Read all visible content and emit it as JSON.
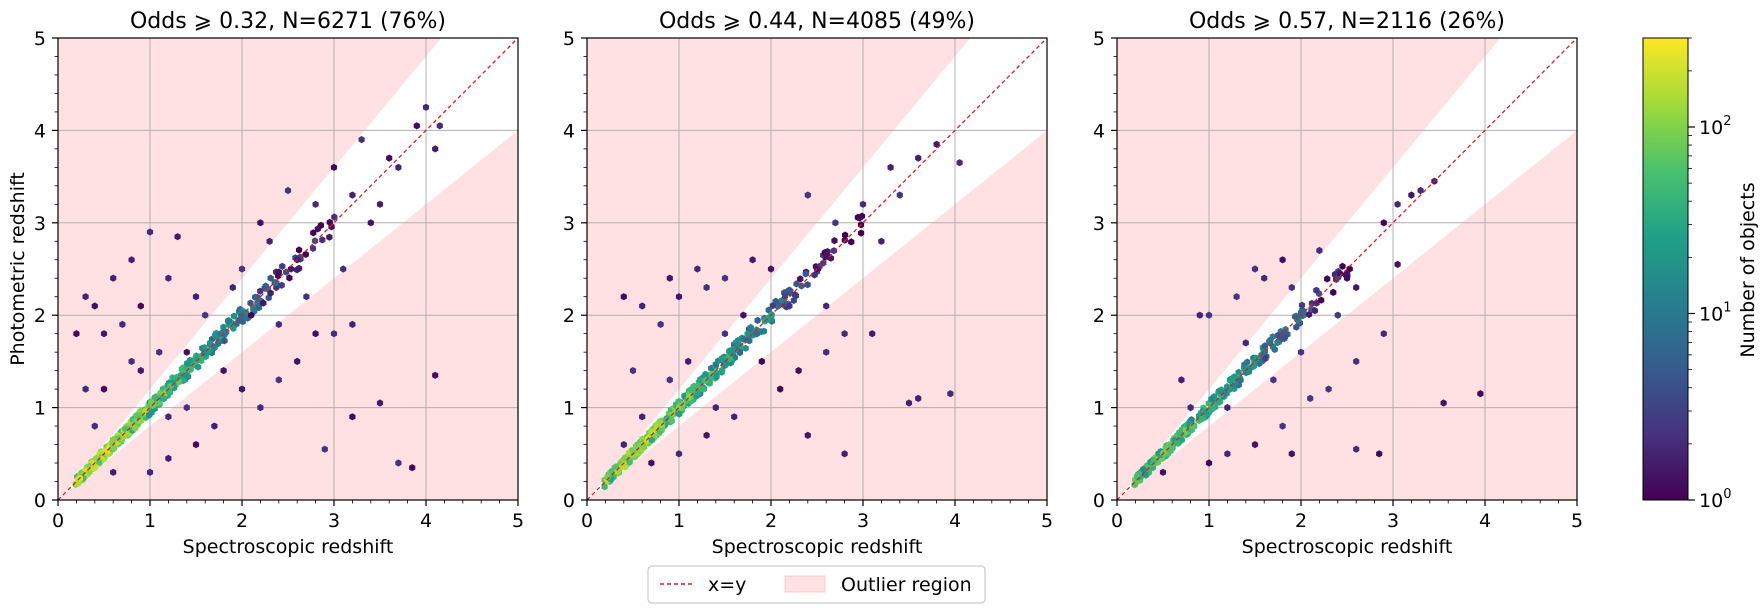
{
  "figure": {
    "legend": {
      "items": [
        {
          "label": "x=y",
          "color": "#e31a1c",
          "style": "dashed-line"
        },
        {
          "label": "Outlier region",
          "color": "#ffe0e3",
          "style": "patch"
        }
      ],
      "placement": "bottom-center"
    },
    "colorbar": {
      "label": "Number of objects",
      "scale": "log",
      "range": [
        1,
        300
      ],
      "ticks": [
        {
          "value": 1,
          "base": "10",
          "exp": "0"
        },
        {
          "value": 10,
          "base": "10",
          "exp": "1"
        },
        {
          "value": 100,
          "base": "10",
          "exp": "2"
        }
      ],
      "colormap": [
        "#440154",
        "#46327e",
        "#365c8d",
        "#277f8e",
        "#1fa187",
        "#4ac16d",
        "#a0da39",
        "#fde725"
      ]
    }
  },
  "chart_data": [
    {
      "type": "scatter",
      "title": "Odds ⩾ 0.32, N=6271 (76%)",
      "xlabel": "Spectroscopic redshift",
      "ylabel": "Photometric redshift",
      "xlim": [
        0,
        5
      ],
      "ylim": [
        0,
        5
      ],
      "xticks": [
        "0",
        "1",
        "2",
        "3",
        "4",
        "5"
      ],
      "yticks": [
        "0",
        "1",
        "2",
        "3",
        "4",
        "5"
      ],
      "grid": true,
      "outlier_region_slope_band": [
        0.8,
        1.2
      ],
      "dense_core": [
        [
          0.3,
          0.3,
          200
        ],
        [
          0.5,
          0.5,
          260
        ],
        [
          0.7,
          0.7,
          220
        ],
        [
          0.9,
          0.9,
          150
        ],
        [
          1.1,
          1.1,
          110
        ],
        [
          1.3,
          1.3,
          80
        ],
        [
          1.5,
          1.5,
          55
        ],
        [
          1.7,
          1.7,
          40
        ],
        [
          1.9,
          1.9,
          30
        ],
        [
          2.1,
          2.1,
          18
        ],
        [
          2.3,
          2.3,
          10
        ],
        [
          2.5,
          2.5,
          6
        ],
        [
          2.7,
          2.7,
          4
        ],
        [
          2.9,
          2.9,
          3
        ]
      ],
      "scatter_points": [
        [
          0.3,
          2.2
        ],
        [
          0.4,
          2.1
        ],
        [
          0.6,
          2.4
        ],
        [
          0.8,
          2.6
        ],
        [
          0.5,
          1.8
        ],
        [
          0.7,
          1.9
        ],
        [
          0.9,
          2.1
        ],
        [
          1.0,
          2.9
        ],
        [
          1.3,
          2.85
        ],
        [
          1.2,
          2.4
        ],
        [
          1.5,
          2.2
        ],
        [
          0.2,
          1.8
        ],
        [
          0.3,
          1.2
        ],
        [
          0.6,
          0.3
        ],
        [
          1.0,
          0.3
        ],
        [
          1.2,
          0.45
        ],
        [
          1.5,
          0.6
        ],
        [
          1.7,
          0.8
        ],
        [
          2.0,
          1.2
        ],
        [
          2.2,
          1.0
        ],
        [
          2.4,
          1.3
        ],
        [
          2.6,
          1.5
        ],
        [
          2.8,
          1.8
        ],
        [
          3.0,
          1.8
        ],
        [
          3.2,
          1.9
        ],
        [
          2.9,
          0.55
        ],
        [
          3.5,
          1.05
        ],
        [
          3.2,
          0.9
        ],
        [
          3.7,
          0.4
        ],
        [
          3.85,
          0.35
        ],
        [
          4.1,
          1.35
        ],
        [
          2.0,
          2.5
        ],
        [
          2.2,
          3.0
        ],
        [
          2.3,
          2.8
        ],
        [
          2.5,
          3.35
        ],
        [
          2.8,
          3.2
        ],
        [
          3.0,
          3.6
        ],
        [
          3.3,
          3.9
        ],
        [
          3.6,
          3.7
        ],
        [
          3.9,
          4.05
        ],
        [
          4.0,
          4.25
        ],
        [
          4.15,
          4.05
        ],
        [
          4.1,
          3.8
        ],
        [
          3.5,
          3.2
        ],
        [
          1.8,
          1.4
        ],
        [
          1.6,
          2.0
        ],
        [
          1.4,
          1.6
        ],
        [
          2.7,
          2.2
        ],
        [
          2.4,
          1.9
        ],
        [
          1.1,
          1.6
        ],
        [
          0.9,
          1.4
        ],
        [
          1.9,
          2.3
        ],
        [
          2.1,
          2.0
        ],
        [
          3.1,
          2.5
        ],
        [
          3.4,
          3.0
        ],
        [
          0.4,
          0.8
        ],
        [
          0.5,
          1.2
        ],
        [
          0.8,
          1.5
        ],
        [
          1.2,
          0.9
        ],
        [
          1.4,
          1.0
        ],
        [
          2.6,
          2.6
        ],
        [
          3.2,
          3.3
        ],
        [
          3.7,
          3.6
        ]
      ]
    },
    {
      "type": "scatter",
      "title": "Odds ⩾ 0.44, N=4085 (49%)",
      "xlabel": "Spectroscopic redshift",
      "ylabel": "",
      "xlim": [
        0,
        5
      ],
      "ylim": [
        0,
        5
      ],
      "xticks": [
        "0",
        "1",
        "2",
        "3",
        "4",
        "5"
      ],
      "yticks": [
        "0",
        "1",
        "2",
        "3",
        "4",
        "5"
      ],
      "grid": true,
      "outlier_region_slope_band": [
        0.8,
        1.2
      ],
      "dense_core": [
        [
          0.3,
          0.3,
          160
        ],
        [
          0.5,
          0.5,
          220
        ],
        [
          0.7,
          0.7,
          190
        ],
        [
          0.9,
          0.9,
          130
        ],
        [
          1.1,
          1.1,
          95
        ],
        [
          1.3,
          1.3,
          70
        ],
        [
          1.5,
          1.5,
          45
        ],
        [
          1.7,
          1.7,
          32
        ],
        [
          1.9,
          1.9,
          24
        ],
        [
          2.1,
          2.1,
          14
        ],
        [
          2.3,
          2.3,
          8
        ],
        [
          2.5,
          2.5,
          5
        ],
        [
          2.7,
          2.7,
          3
        ],
        [
          2.9,
          2.9,
          2
        ]
      ],
      "scatter_points": [
        [
          0.4,
          2.2
        ],
        [
          0.6,
          2.1
        ],
        [
          0.9,
          2.4
        ],
        [
          1.2,
          2.5
        ],
        [
          0.8,
          1.9
        ],
        [
          1.0,
          2.2
        ],
        [
          1.3,
          2.3
        ],
        [
          1.5,
          2.4
        ],
        [
          0.5,
          1.4
        ],
        [
          0.7,
          0.4
        ],
        [
          1.0,
          0.5
        ],
        [
          1.3,
          0.7
        ],
        [
          1.6,
          0.9
        ],
        [
          2.1,
          1.2
        ],
        [
          2.3,
          1.4
        ],
        [
          2.6,
          1.6
        ],
        [
          2.8,
          1.8
        ],
        [
          3.1,
          1.8
        ],
        [
          2.4,
          0.7
        ],
        [
          2.8,
          0.5
        ],
        [
          3.5,
          1.05
        ],
        [
          3.6,
          1.1
        ],
        [
          3.95,
          1.15
        ],
        [
          1.8,
          2.6
        ],
        [
          2.0,
          2.5
        ],
        [
          2.4,
          3.3
        ],
        [
          2.7,
          3.0
        ],
        [
          3.0,
          3.2
        ],
        [
          3.3,
          3.6
        ],
        [
          3.6,
          3.7
        ],
        [
          3.8,
          3.85
        ],
        [
          4.05,
          3.65
        ],
        [
          1.9,
          1.5
        ],
        [
          2.2,
          2.1
        ],
        [
          1.5,
          1.8
        ],
        [
          1.1,
          1.5
        ],
        [
          2.6,
          2.1
        ],
        [
          3.2,
          2.8
        ],
        [
          0.4,
          0.6
        ],
        [
          0.6,
          0.9
        ],
        [
          1.4,
          1.0
        ],
        [
          2.5,
          2.5
        ],
        [
          3.4,
          3.3
        ],
        [
          1.7,
          2.0
        ],
        [
          0.9,
          1.3
        ]
      ]
    },
    {
      "type": "scatter",
      "title": "Odds ⩾ 0.57, N=2116 (26%)",
      "xlabel": "Spectroscopic redshift",
      "ylabel": "",
      "xlim": [
        0,
        5
      ],
      "ylim": [
        0,
        5
      ],
      "xticks": [
        "0",
        "1",
        "2",
        "3",
        "4",
        "5"
      ],
      "yticks": [
        "0",
        "1",
        "2",
        "3",
        "4",
        "5"
      ],
      "grid": true,
      "outlier_region_slope_band": [
        0.8,
        1.2
      ],
      "dense_core": [
        [
          0.3,
          0.3,
          90
        ],
        [
          0.5,
          0.5,
          120
        ],
        [
          0.7,
          0.7,
          100
        ],
        [
          0.9,
          0.9,
          70
        ],
        [
          1.1,
          1.1,
          50
        ],
        [
          1.3,
          1.3,
          38
        ],
        [
          1.5,
          1.5,
          25
        ],
        [
          1.7,
          1.7,
          18
        ],
        [
          1.9,
          1.9,
          12
        ],
        [
          2.1,
          2.1,
          8
        ],
        [
          2.3,
          2.3,
          4
        ],
        [
          2.5,
          2.5,
          2
        ]
      ],
      "scatter_points": [
        [
          0.9,
          2.0
        ],
        [
          1.0,
          2.0
        ],
        [
          1.3,
          2.2
        ],
        [
          1.5,
          2.5
        ],
        [
          1.6,
          2.4
        ],
        [
          1.8,
          2.6
        ],
        [
          0.7,
          1.3
        ],
        [
          0.5,
          0.3
        ],
        [
          1.0,
          0.4
        ],
        [
          1.2,
          0.5
        ],
        [
          1.5,
          0.6
        ],
        [
          1.8,
          0.8
        ],
        [
          1.9,
          0.5
        ],
        [
          2.1,
          1.1
        ],
        [
          2.3,
          1.2
        ],
        [
          2.6,
          1.5
        ],
        [
          2.9,
          1.8
        ],
        [
          2.6,
          0.55
        ],
        [
          2.85,
          0.5
        ],
        [
          3.55,
          1.05
        ],
        [
          3.95,
          1.15
        ],
        [
          2.2,
          2.7
        ],
        [
          2.5,
          2.4
        ],
        [
          2.9,
          3.0
        ],
        [
          3.05,
          3.2
        ],
        [
          3.2,
          3.3
        ],
        [
          3.3,
          3.35
        ],
        [
          3.45,
          3.45
        ],
        [
          3.05,
          2.55
        ],
        [
          2.6,
          2.3
        ],
        [
          1.7,
          1.3
        ],
        [
          1.4,
          1.7
        ],
        [
          2.0,
          1.6
        ],
        [
          0.8,
          1.0
        ],
        [
          1.2,
          1.0
        ],
        [
          2.4,
          2.0
        ],
        [
          1.9,
          2.3
        ]
      ]
    }
  ]
}
